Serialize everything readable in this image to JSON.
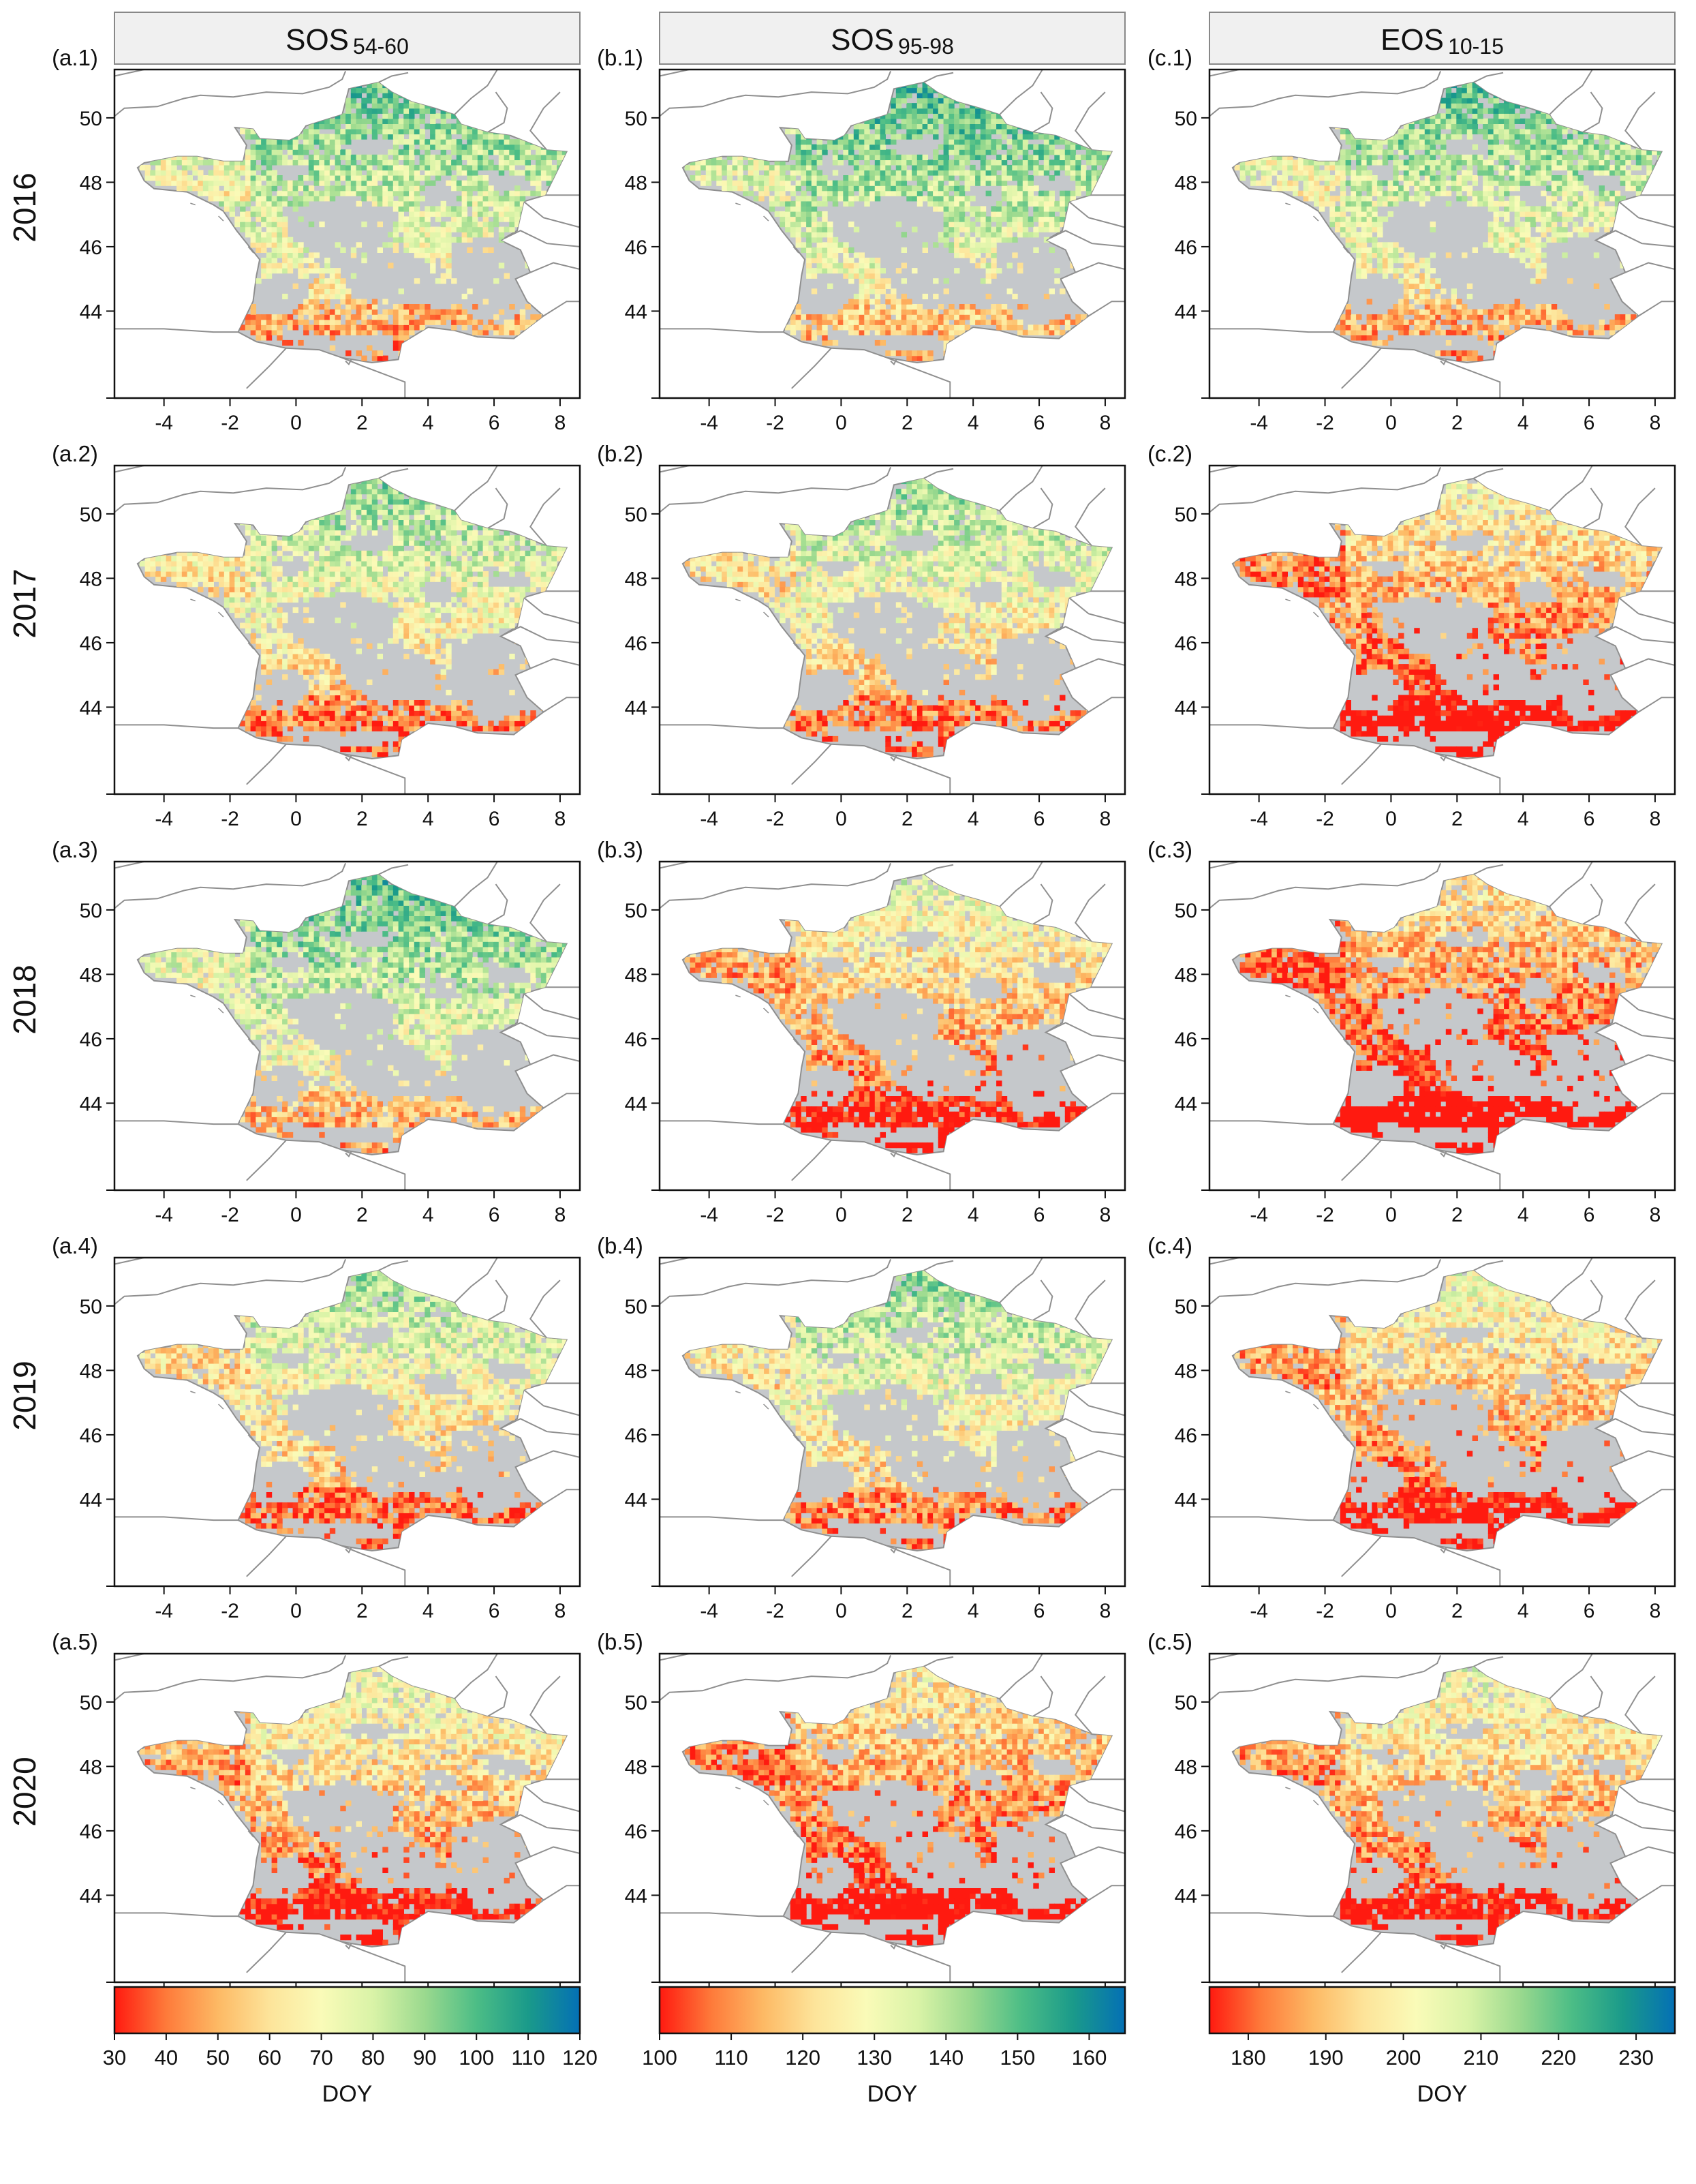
{
  "figure": {
    "columns": [
      {
        "id": "a",
        "strip_main": "SOS",
        "strip_sub": "54-60"
      },
      {
        "id": "b",
        "strip_main": "SOS",
        "strip_sub": "95-98"
      },
      {
        "id": "c",
        "strip_main": "EOS",
        "strip_sub": "10-15"
      }
    ],
    "rows": [
      {
        "year": "2016",
        "panels": [
          "(a.1)",
          "(b.1)",
          "(c.1)"
        ]
      },
      {
        "year": "2017",
        "panels": [
          "(a.2)",
          "(b.2)",
          "(c.2)"
        ]
      },
      {
        "year": "2018",
        "panels": [
          "(a.3)",
          "(b.3)",
          "(c.3)"
        ]
      },
      {
        "year": "2019",
        "panels": [
          "(a.4)",
          "(b.4)",
          "(c.4)"
        ]
      },
      {
        "year": "2020",
        "panels": [
          "(a.5)",
          "(b.5)",
          "(c.5)"
        ]
      }
    ],
    "colors": {
      "no_data": "#c5c8cb",
      "border": "#888888",
      "strip_bg": "#f0f0f0",
      "ramp": [
        "#ff1a10",
        "#fe7a3a",
        "#fdb964",
        "#fde49a",
        "#fafbb8",
        "#d9f3a7",
        "#9ad98e",
        "#4cbd86",
        "#1a9a8a",
        "#0470b5"
      ]
    }
  },
  "chart_data": {
    "type": "heatmap",
    "x_ticks": [
      -4,
      -2,
      0,
      2,
      4,
      6,
      8
    ],
    "y_ticks": [
      44,
      46,
      48,
      50
    ],
    "xlim": [
      -5.5,
      8.6
    ],
    "ylim": [
      41.3,
      51.5
    ],
    "colorbars": [
      {
        "column": "a",
        "title": "DOY",
        "range": [
          30,
          120
        ],
        "ticks": [
          30,
          40,
          50,
          60,
          70,
          80,
          90,
          100,
          110,
          120
        ]
      },
      {
        "column": "b",
        "title": "DOY",
        "range": [
          100,
          165
        ],
        "ticks": [
          100,
          110,
          120,
          130,
          140,
          150,
          160
        ]
      },
      {
        "column": "c",
        "title": "DOY",
        "range": [
          175,
          235
        ],
        "ticks": [
          180,
          190,
          200,
          210,
          220,
          230
        ]
      }
    ],
    "panel_tone": [
      [
        0.55,
        0.6,
        0.55
      ],
      [
        0.47,
        0.45,
        0.22
      ],
      [
        0.57,
        0.3,
        0.16
      ],
      [
        0.43,
        0.47,
        0.28
      ],
      [
        0.3,
        0.2,
        0.28
      ]
    ]
  }
}
